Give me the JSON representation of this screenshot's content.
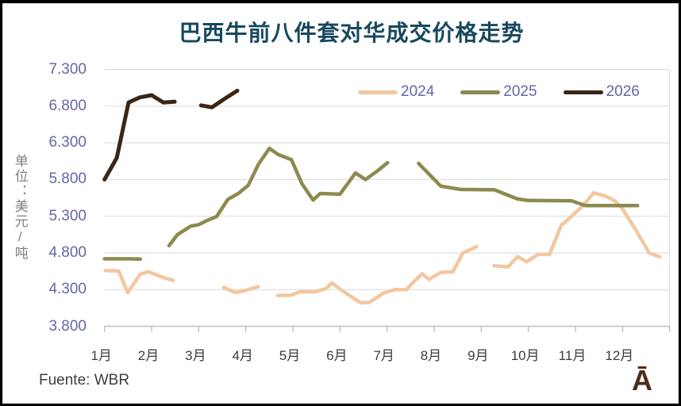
{
  "window": {
    "background": "#FFFFFF",
    "border_color": "#000000"
  },
  "title": {
    "text": "巴西牛前八件套对华成交价格走势",
    "color": "#17495E"
  },
  "y_axis": {
    "unit_label": "单位：美元/吨",
    "unit_label_color": "#7F7F7F",
    "tick_color": "#6467A8",
    "ticks": [
      {
        "label": "7.300",
        "value": 7300
      },
      {
        "label": "6.800",
        "value": 6800
      },
      {
        "label": "6.300",
        "value": 6300
      },
      {
        "label": "5.800",
        "value": 5800
      },
      {
        "label": "5.300",
        "value": 5300
      },
      {
        "label": "4.800",
        "value": 4800
      },
      {
        "label": "4.300",
        "value": 4300
      },
      {
        "label": "3.800",
        "value": 3800
      }
    ]
  },
  "x_axis": {
    "labels": [
      "1月",
      "2月",
      "3月",
      "4月",
      "5月",
      "6月",
      "7月",
      "8月",
      "9月",
      "10月",
      "11月",
      "12月"
    ],
    "color": "#3D3D3D"
  },
  "legend": {
    "text_color": "#6467A8",
    "items": [
      {
        "label": "2024",
        "color": "#F2C7A0"
      },
      {
        "label": "2025",
        "color": "#8E8A4F"
      },
      {
        "label": "2026",
        "color": "#3B2616"
      }
    ]
  },
  "footer": {
    "source": "Fuente: WBR",
    "source_color": "#3E3E3E",
    "logo": "Ā",
    "logo_color": "#4C2D1A"
  },
  "chart_data": {
    "type": "line",
    "title": "巴西牛前八件套对华成交价格走势",
    "ylabel": "单位：美元/吨",
    "ylim": [
      3800,
      7300
    ],
    "y_tick_step": 500,
    "x_categories": [
      "1月",
      "2月",
      "3月",
      "4月",
      "5月",
      "6月",
      "7月",
      "8月",
      "9月",
      "10月",
      "11月",
      "12月"
    ],
    "grid": "horizontal",
    "legend_position": "top-right-inside",
    "gridline_color": "#D9D9D9",
    "axis_color": "#BFBFBF",
    "x_unit": "month_fraction (1 = 1月 tick, weekly points)",
    "y_unit": "USD/ton",
    "series": [
      {
        "name": "2024",
        "color": "#F2C7A0",
        "width": 4.5,
        "segments": [
          [
            [
              1.02,
              4560
            ],
            [
              1.3,
              4555
            ],
            [
              1.49,
              4260
            ],
            [
              1.76,
              4510
            ],
            [
              1.93,
              4545
            ],
            [
              2.25,
              4465
            ],
            [
              2.46,
              4425
            ]
          ],
          [
            [
              3.53,
              4330
            ],
            [
              3.79,
              4260
            ],
            [
              4.06,
              4300
            ],
            [
              4.26,
              4340
            ]
          ],
          [
            [
              4.68,
              4220
            ],
            [
              4.95,
              4225
            ],
            [
              5.15,
              4270
            ],
            [
              5.47,
              4270
            ],
            [
              5.7,
              4315
            ],
            [
              5.83,
              4390
            ],
            [
              6.03,
              4295
            ],
            [
              6.28,
              4185
            ],
            [
              6.45,
              4120
            ],
            [
              6.62,
              4125
            ],
            [
              6.92,
              4250
            ],
            [
              7.16,
              4300
            ],
            [
              7.41,
              4300
            ],
            [
              7.6,
              4430
            ],
            [
              7.75,
              4515
            ],
            [
              7.89,
              4440
            ],
            [
              8.14,
              4535
            ],
            [
              8.4,
              4545
            ],
            [
              8.61,
              4800
            ],
            [
              8.9,
              4885
            ]
          ],
          [
            [
              9.27,
              4625
            ],
            [
              9.57,
              4610
            ],
            [
              9.77,
              4750
            ],
            [
              9.96,
              4680
            ],
            [
              10.21,
              4780
            ],
            [
              10.45,
              4780
            ],
            [
              10.7,
              5180
            ],
            [
              10.8,
              5230
            ],
            [
              11.17,
              5450
            ],
            [
              11.39,
              5620
            ],
            [
              11.63,
              5575
            ],
            [
              11.81,
              5520
            ],
            [
              11.98,
              5420
            ],
            [
              12.27,
              5125
            ],
            [
              12.47,
              4910
            ],
            [
              12.56,
              4800
            ],
            [
              12.79,
              4745
            ]
          ]
        ]
      },
      {
        "name": "2025",
        "color": "#8E8A4F",
        "width": 4.5,
        "segments": [
          [
            [
              1.0,
              4720
            ],
            [
              1.25,
              4720
            ],
            [
              1.5,
              4720
            ],
            [
              1.76,
              4715
            ]
          ],
          [
            [
              2.37,
              4900
            ],
            [
              2.55,
              5050
            ],
            [
              2.83,
              5165
            ],
            [
              3.0,
              5185
            ],
            [
              3.17,
              5240
            ],
            [
              3.38,
              5295
            ],
            [
              3.62,
              5530
            ],
            [
              3.84,
              5610
            ],
            [
              4.05,
              5720
            ],
            [
              4.27,
              6010
            ],
            [
              4.5,
              6225
            ],
            [
              4.69,
              6140
            ],
            [
              4.97,
              6070
            ],
            [
              5.19,
              5745
            ],
            [
              5.43,
              5520
            ],
            [
              5.58,
              5610
            ],
            [
              6.0,
              5600
            ],
            [
              6.33,
              5890
            ],
            [
              6.54,
              5800
            ],
            [
              6.82,
              5930
            ],
            [
              7.01,
              6030
            ]
          ],
          [
            [
              7.67,
              6020
            ],
            [
              8.14,
              5710
            ],
            [
              8.56,
              5665
            ],
            [
              9.28,
              5660
            ],
            [
              9.77,
              5535
            ],
            [
              10.0,
              5515
            ],
            [
              10.92,
              5510
            ],
            [
              11.21,
              5445
            ],
            [
              12.32,
              5445
            ]
          ]
        ]
      },
      {
        "name": "2026",
        "color": "#3B2616",
        "width": 5,
        "segments": [
          [
            [
              1.0,
              5800
            ],
            [
              1.26,
              6095
            ],
            [
              1.51,
              6850
            ],
            [
              1.75,
              6920
            ],
            [
              2.0,
              6950
            ],
            [
              2.25,
              6850
            ],
            [
              2.49,
              6860
            ]
          ],
          [
            [
              3.05,
              6810
            ],
            [
              3.28,
              6785
            ],
            [
              3.55,
              6900
            ],
            [
              3.82,
              7010
            ]
          ]
        ]
      }
    ]
  }
}
